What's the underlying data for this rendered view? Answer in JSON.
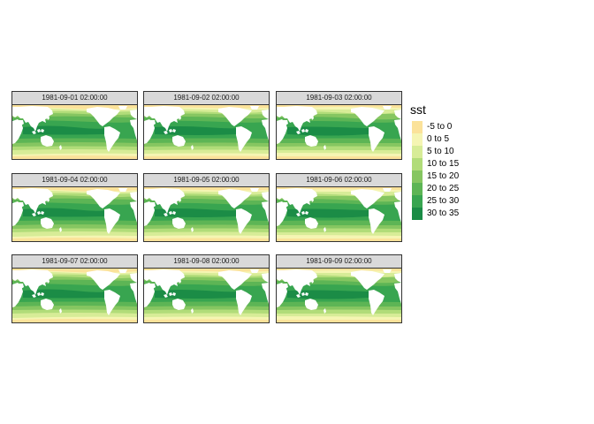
{
  "legend": {
    "title": "sst",
    "classes": [
      {
        "label": "-5 to 0",
        "color": "#fbe29a"
      },
      {
        "label": "0 to 5",
        "color": "#f5f5b3"
      },
      {
        "label": "5 to 10",
        "color": "#d7ec97"
      },
      {
        "label": "10 to 15",
        "color": "#b1dc79"
      },
      {
        "label": "15 to 20",
        "color": "#86c661"
      },
      {
        "label": "20 to 25",
        "color": "#5db555"
      },
      {
        "label": "25 to 30",
        "color": "#38a550"
      },
      {
        "label": "30 to 35",
        "color": "#1b8c46"
      }
    ]
  },
  "panels": [
    {
      "label": "1981-09-01 02:00:00"
    },
    {
      "label": "1981-09-02 02:00:00"
    },
    {
      "label": "1981-09-03 02:00:00"
    },
    {
      "label": "1981-09-04 02:00:00"
    },
    {
      "label": "1981-09-05 02:00:00"
    },
    {
      "label": "1981-09-06 02:00:00"
    },
    {
      "label": "1981-09-07 02:00:00"
    },
    {
      "label": "1981-09-08 02:00:00"
    },
    {
      "label": "1981-09-09 02:00:00"
    }
  ]
}
